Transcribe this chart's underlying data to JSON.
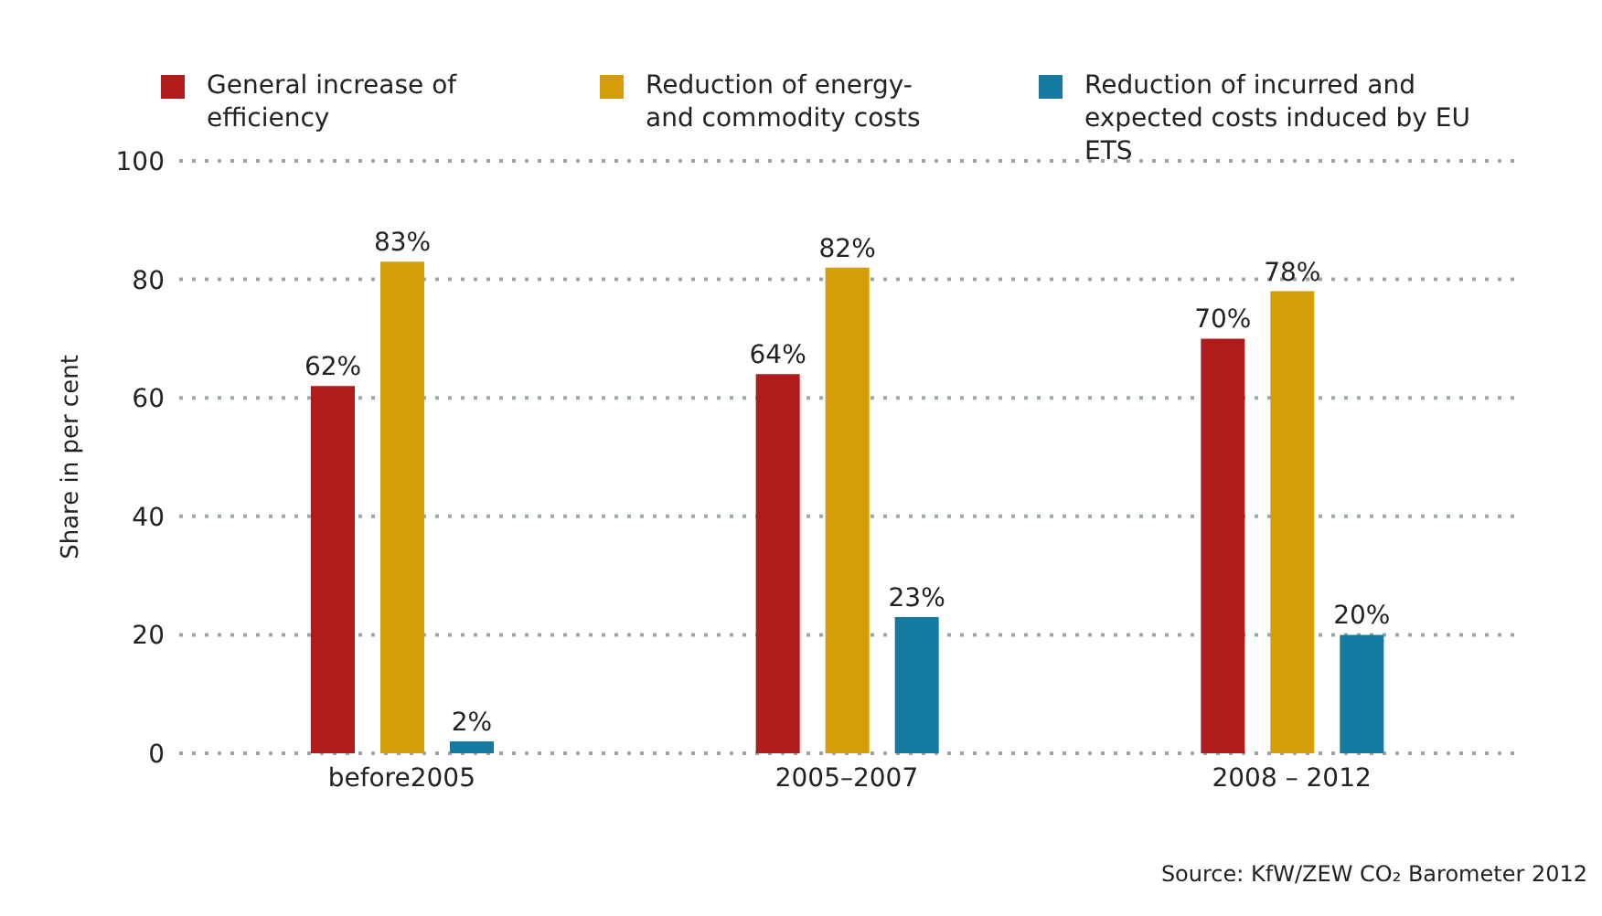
{
  "chart_data": {
    "type": "bar",
    "ylabel": "Share in per cent",
    "categories": [
      "before2005",
      "2005–2007",
      "2008 – 2012"
    ],
    "series": [
      {
        "name": "General increase of efficiency",
        "color": "#b01c1c",
        "values": [
          62,
          64,
          70
        ],
        "value_labels": [
          "62%",
          "64%",
          "70%"
        ]
      },
      {
        "name": "Reduction of energy- and commodity costs",
        "color": "#d69e06",
        "values": [
          83,
          82,
          78
        ],
        "value_labels": [
          "83%",
          "82%",
          "78%"
        ]
      },
      {
        "name": "Reduction of incurred and expected costs induced by EU ETS",
        "color": "#147aa0",
        "values": [
          2,
          23,
          20
        ],
        "value_labels": [
          "2%",
          "23%",
          "20%"
        ]
      }
    ],
    "ylim": [
      0,
      100
    ],
    "yticks": [
      0,
      20,
      40,
      60,
      80,
      100
    ],
    "grid": "y",
    "legend": "top",
    "annotations": [
      "Source: KfW/ZEW CO₂ Barometer 2012"
    ]
  }
}
